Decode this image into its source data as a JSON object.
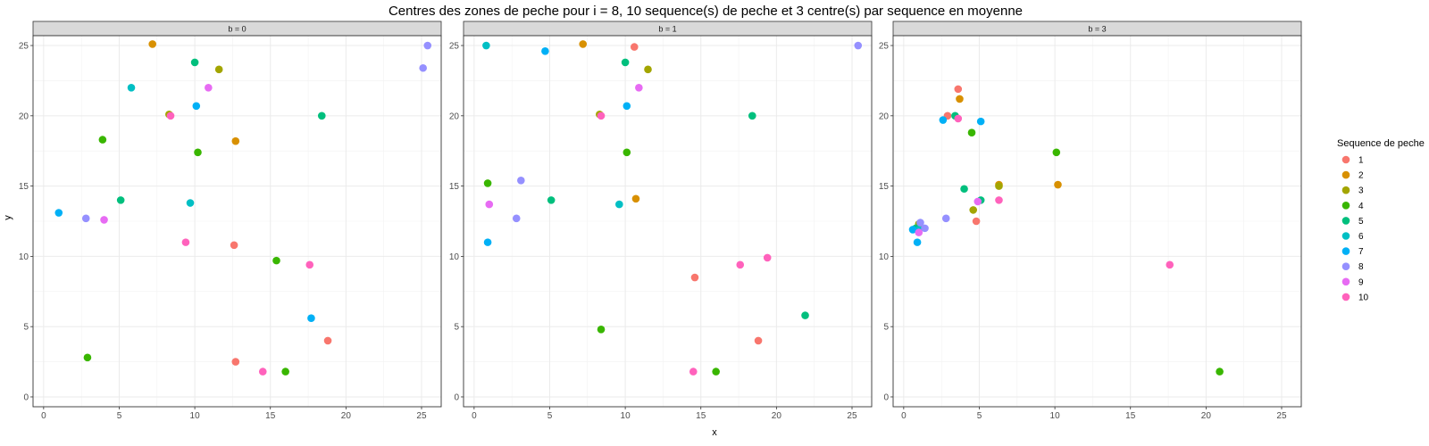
{
  "chart_data": {
    "type": "scatter",
    "title": "Centres des zones de peche pour i = 8, 10 sequence(s) de peche et 3 centre(s) par sequence en moyenne",
    "xlabel": "x",
    "ylabel": "y",
    "xlim": [
      -0.7,
      26.3
    ],
    "ylim": [
      -0.7,
      25.7
    ],
    "x_ticks": [
      0,
      5,
      10,
      15,
      20,
      25
    ],
    "y_ticks": [
      0,
      5,
      10,
      15,
      20,
      25
    ],
    "grid": true,
    "legend": {
      "title": "Sequence de peche",
      "position": "right",
      "entries": [
        "1",
        "2",
        "3",
        "4",
        "5",
        "6",
        "7",
        "8",
        "9",
        "10"
      ],
      "colors": [
        "#F8766D",
        "#D89000",
        "#A3A500",
        "#39B600",
        "#00BF7D",
        "#00BFC4",
        "#00B0F6",
        "#9590FF",
        "#E76BF3",
        "#FF62BC"
      ]
    },
    "panels": [
      {
        "label": "b = 0",
        "series": [
          {
            "name": "1",
            "x": [
              12.6,
              12.7,
              18.8
            ],
            "y": [
              10.8,
              2.5,
              4.0
            ]
          },
          {
            "name": "2",
            "x": [
              7.2,
              12.7
            ],
            "y": [
              25.1,
              18.2
            ]
          },
          {
            "name": "3",
            "x": [
              8.3,
              11.6
            ],
            "y": [
              20.1,
              23.3
            ]
          },
          {
            "name": "4",
            "x": [
              3.9,
              10.2,
              15.4,
              2.9,
              16.0
            ],
            "y": [
              18.3,
              17.4,
              9.7,
              2.8,
              1.8
            ]
          },
          {
            "name": "5",
            "x": [
              10.0,
              18.4,
              5.1
            ],
            "y": [
              23.8,
              20.0,
              14.0
            ]
          },
          {
            "name": "6",
            "x": [
              5.8,
              9.7
            ],
            "y": [
              22.0,
              13.8
            ]
          },
          {
            "name": "7",
            "x": [
              10.1,
              1.0,
              17.7
            ],
            "y": [
              20.7,
              13.1,
              5.6
            ]
          },
          {
            "name": "8",
            "x": [
              25.4,
              25.1,
              2.8
            ],
            "y": [
              25.0,
              23.4,
              12.7
            ]
          },
          {
            "name": "9",
            "x": [
              10.9,
              4.0
            ],
            "y": [
              22.0,
              12.6
            ]
          },
          {
            "name": "10",
            "x": [
              8.4,
              9.4,
              17.6,
              14.5
            ],
            "y": [
              20.0,
              11.0,
              9.4,
              1.8
            ]
          }
        ]
      },
      {
        "label": "b = 1",
        "series": [
          {
            "name": "1",
            "x": [
              10.6,
              14.6,
              18.8
            ],
            "y": [
              24.9,
              8.5,
              4.0
            ]
          },
          {
            "name": "2",
            "x": [
              7.2,
              10.7
            ],
            "y": [
              25.1,
              14.1
            ]
          },
          {
            "name": "3",
            "x": [
              8.3,
              11.5
            ],
            "y": [
              20.1,
              23.3
            ]
          },
          {
            "name": "4",
            "x": [
              0.9,
              10.1,
              8.4,
              16.0
            ],
            "y": [
              15.2,
              17.4,
              4.8,
              1.8
            ]
          },
          {
            "name": "5",
            "x": [
              10.0,
              18.4,
              5.1,
              21.9
            ],
            "y": [
              23.8,
              20.0,
              14.0,
              5.8
            ]
          },
          {
            "name": "6",
            "x": [
              0.8,
              9.6
            ],
            "y": [
              25.0,
              13.7
            ]
          },
          {
            "name": "7",
            "x": [
              4.7,
              10.1,
              0.9
            ],
            "y": [
              24.6,
              20.7,
              11.0
            ]
          },
          {
            "name": "8",
            "x": [
              25.4,
              3.1,
              2.8
            ],
            "y": [
              25.0,
              15.4,
              12.7
            ]
          },
          {
            "name": "9",
            "x": [
              10.9,
              1.0
            ],
            "y": [
              22.0,
              13.7
            ]
          },
          {
            "name": "10",
            "x": [
              8.4,
              17.6,
              19.4,
              14.5
            ],
            "y": [
              20.0,
              9.4,
              9.9,
              1.8
            ]
          }
        ]
      },
      {
        "label": "b = 3",
        "series": [
          {
            "name": "1",
            "x": [
              3.6,
              2.9,
              4.8
            ],
            "y": [
              21.9,
              20.0,
              12.5
            ]
          },
          {
            "name": "2",
            "x": [
              3.7,
              10.2,
              6.3
            ],
            "y": [
              21.2,
              15.1,
              15.1
            ]
          },
          {
            "name": "3",
            "x": [
              6.3,
              4.6,
              1.0
            ],
            "y": [
              15.0,
              13.3,
              12.3
            ]
          },
          {
            "name": "4",
            "x": [
              10.1,
              4.5,
              20.9
            ],
            "y": [
              17.4,
              18.8,
              1.8
            ]
          },
          {
            "name": "5",
            "x": [
              3.4,
              4.0,
              5.1,
              0.8
            ],
            "y": [
              20.0,
              14.8,
              14.0,
              12.0
            ]
          },
          {
            "name": "6",
            "x": [
              1.0
            ],
            "y": [
              11.9
            ]
          },
          {
            "name": "7",
            "x": [
              2.6,
              5.1,
              0.6,
              0.9
            ],
            "y": [
              19.7,
              19.6,
              11.9,
              11.0
            ]
          },
          {
            "name": "8",
            "x": [
              2.8,
              1.1,
              1.4
            ],
            "y": [
              12.7,
              12.4,
              12.0
            ]
          },
          {
            "name": "9",
            "x": [
              4.9,
              1.0
            ],
            "y": [
              13.9,
              11.7
            ]
          },
          {
            "name": "10",
            "x": [
              3.6,
              6.3,
              17.6
            ],
            "y": [
              19.8,
              14.0,
              9.4
            ]
          }
        ]
      }
    ]
  }
}
